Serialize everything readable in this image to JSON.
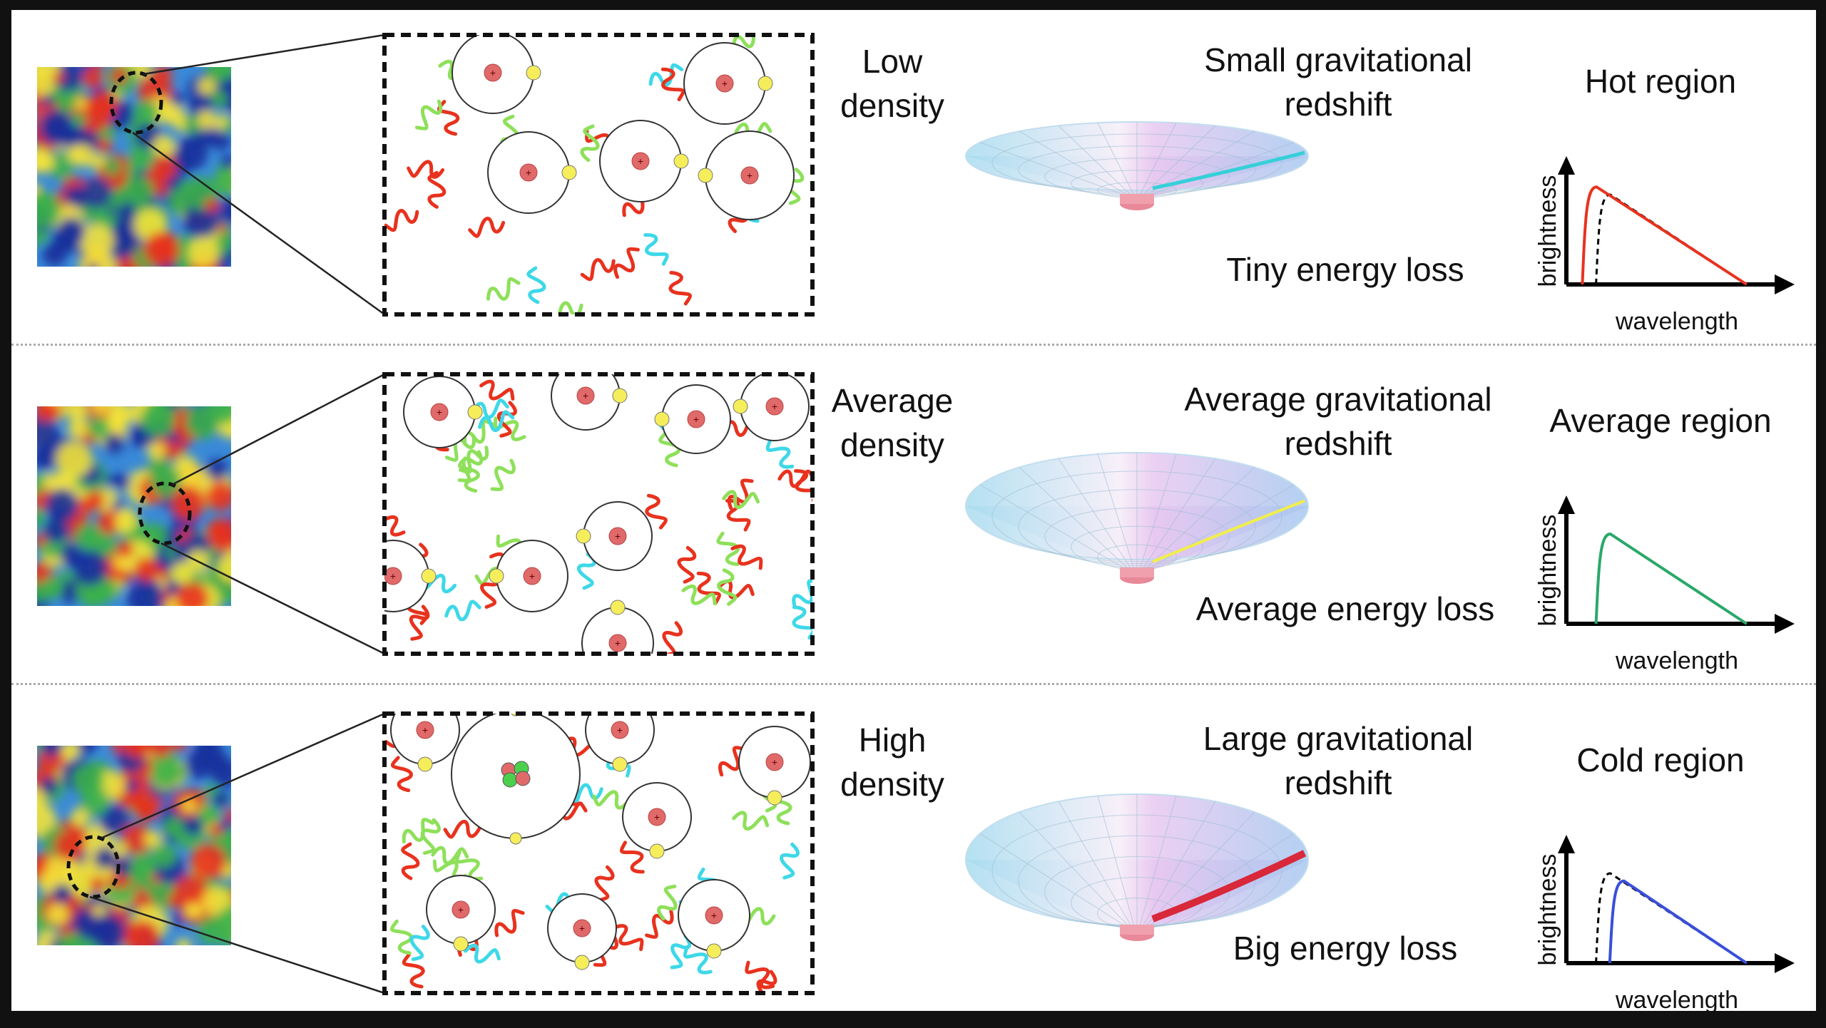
{
  "rows": [
    {
      "density": [
        "Low",
        "density"
      ],
      "redshift": [
        "Small gravitational",
        "redshift"
      ],
      "energy_loss": "Tiny energy loss",
      "region_title": "Hot region",
      "y_axis_label": "brightness",
      "x_axis_label": "wavelength",
      "trajectory_color": "#35d0d8",
      "spectrum_color": "#e8321e",
      "peak_shift": -1
    },
    {
      "density": [
        "Average",
        "density"
      ],
      "redshift": [
        "Average gravitational",
        "redshift"
      ],
      "energy_loss": "Average energy loss",
      "region_title": "Average region",
      "y_axis_label": "brightness",
      "x_axis_label": "wavelength",
      "trajectory_color": "#f2ee4a",
      "spectrum_color": "#2aa86a",
      "peak_shift": 0
    },
    {
      "density": [
        "High",
        "density"
      ],
      "redshift": [
        "Large gravitational",
        "redshift"
      ],
      "energy_loss": "Big energy loss",
      "region_title": "Cold region",
      "y_axis_label": "brightness",
      "x_axis_label": "wavelength",
      "trajectory_color": "#d8283a",
      "spectrum_color": "#3a4fd8",
      "peak_shift": 1
    }
  ],
  "colors": {
    "photon_red": "#e8321e",
    "photon_green": "#8ee05a",
    "photon_cyan": "#3ed8e8",
    "nucleus": "#e06a6a",
    "electron": "#f5ee5a"
  }
}
